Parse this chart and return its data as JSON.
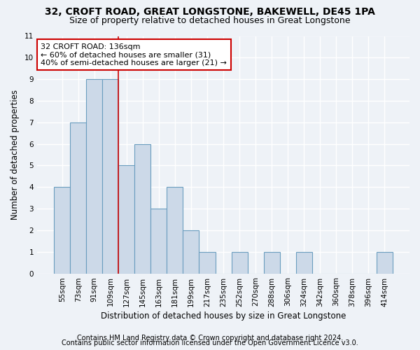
{
  "title1": "32, CROFT ROAD, GREAT LONGSTONE, BAKEWELL, DE45 1PA",
  "title2": "Size of property relative to detached houses in Great Longstone",
  "xlabel": "Distribution of detached houses by size in Great Longstone",
  "ylabel": "Number of detached properties",
  "categories": [
    "55sqm",
    "73sqm",
    "91sqm",
    "109sqm",
    "127sqm",
    "145sqm",
    "163sqm",
    "181sqm",
    "199sqm",
    "217sqm",
    "235sqm",
    "252sqm",
    "270sqm",
    "288sqm",
    "306sqm",
    "324sqm",
    "342sqm",
    "360sqm",
    "378sqm",
    "396sqm",
    "414sqm"
  ],
  "values": [
    4,
    7,
    9,
    9,
    5,
    6,
    3,
    4,
    2,
    1,
    0,
    1,
    0,
    1,
    0,
    1,
    0,
    0,
    0,
    0,
    1
  ],
  "bar_color": "#ccd9e8",
  "bar_edge_color": "#6a9dbf",
  "vline_x": 3.5,
  "vline_color": "#cc0000",
  "annotation_box_text": "32 CROFT ROAD: 136sqm\n← 60% of detached houses are smaller (31)\n40% of semi-detached houses are larger (21) →",
  "annotation_box_color": "white",
  "annotation_box_edge_color": "#cc0000",
  "ylim": [
    0,
    11
  ],
  "yticks": [
    0,
    1,
    2,
    3,
    4,
    5,
    6,
    7,
    8,
    9,
    10,
    11
  ],
  "footer1": "Contains HM Land Registry data © Crown copyright and database right 2024.",
  "footer2": "Contains public sector information licensed under the Open Government Licence v3.0.",
  "background_color": "#eef2f7",
  "grid_color": "#ffffff",
  "title1_fontsize": 10,
  "title2_fontsize": 9,
  "axis_label_fontsize": 8.5,
  "tick_fontsize": 7.5,
  "annotation_fontsize": 8,
  "footer_fontsize": 7
}
